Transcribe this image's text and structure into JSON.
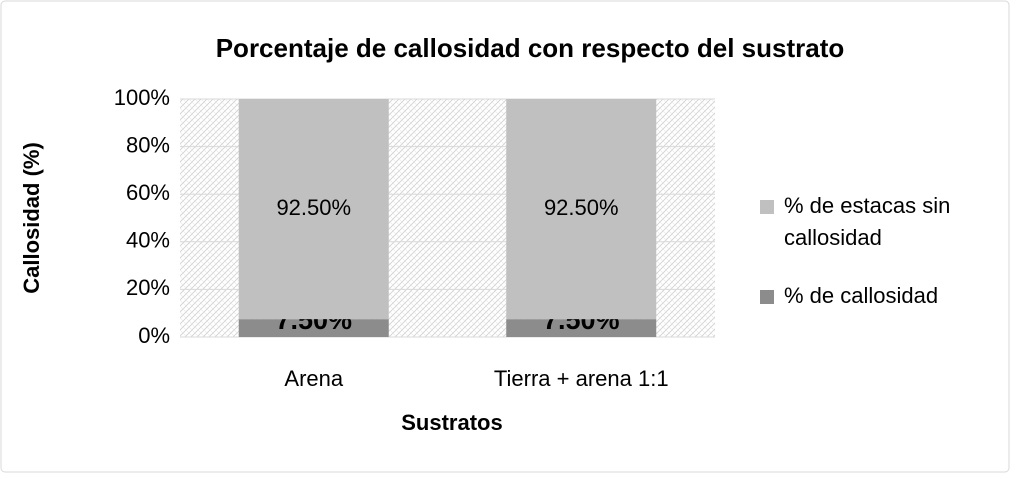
{
  "chart_data": {
    "type": "stacked_bar",
    "title": "Porcentaje de callosidad con respecto del sustrato",
    "x_label": "Sustratos",
    "y_label": "Callosidad (%)",
    "categories": [
      "Arena",
      "Tierra + arena 1:1"
    ],
    "series": [
      {
        "name": "% de callosidad",
        "color": "#8c8c8c",
        "values": [
          7.5,
          7.5
        ],
        "value_labels": [
          "7.50%",
          "7.50%"
        ]
      },
      {
        "name": "% de estacas sin callosidad",
        "color": "#c0c0c0",
        "values": [
          92.5,
          92.5
        ],
        "value_labels": [
          "92.50%",
          "92.50%"
        ]
      }
    ],
    "ylim": [
      0,
      100
    ],
    "yticks": [
      {
        "value": 0,
        "label": "0%"
      },
      {
        "value": 20,
        "label": "20%"
      },
      {
        "value": 40,
        "label": "40%"
      },
      {
        "value": 60,
        "label": "60%"
      },
      {
        "value": 80,
        "label": "80%"
      },
      {
        "value": 100,
        "label": "100%"
      }
    ],
    "grid": true,
    "legend": "right"
  }
}
